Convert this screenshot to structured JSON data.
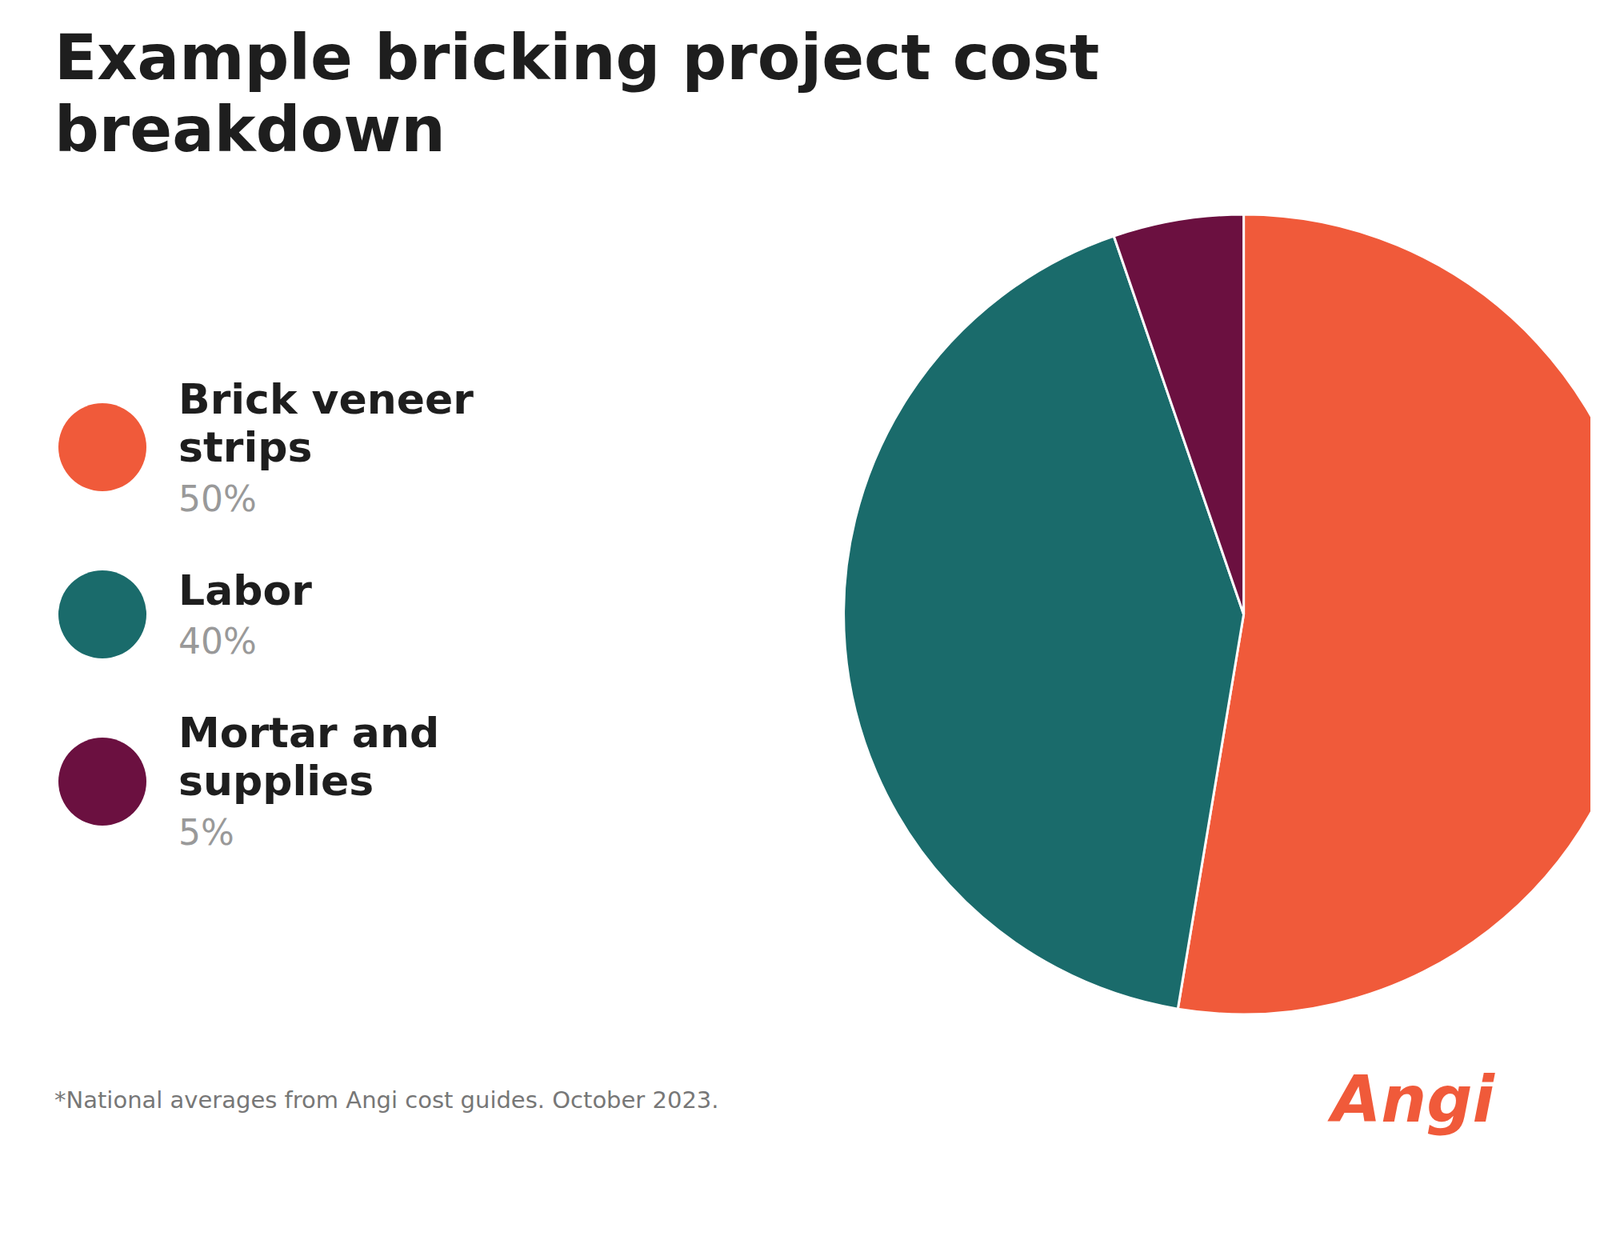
{
  "chart_data": {
    "type": "pie",
    "title": "Example bricking project cost breakdown",
    "categories": [
      "Brick veneer strips",
      "Labor",
      "Mortar and supplies"
    ],
    "values": [
      50,
      40,
      5
    ],
    "value_labels": [
      "50%",
      "40%",
      "5%"
    ],
    "colors": [
      "#f05a3a",
      "#1a6b6b",
      "#6b1040"
    ],
    "legend": "left",
    "annotations": [
      "*National averages from Angi cost guides. October 2023.",
      "Angi"
    ]
  }
}
